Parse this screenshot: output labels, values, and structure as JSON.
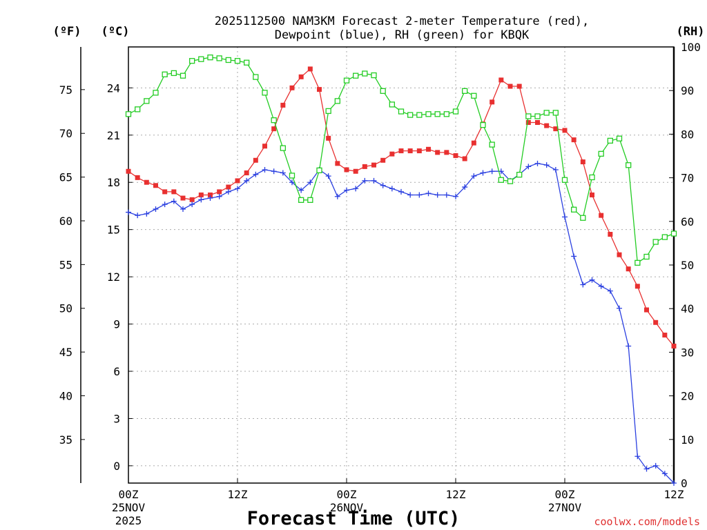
{
  "title_line1": "2025112500 NAM3KM Forecast 2-meter Temperature (red),",
  "title_line2": "Dewpoint (blue), RH (green) for KBQK",
  "credit": "coolwx.com/models",
  "chart_data": {
    "type": "line",
    "title": "2025112500 NAM3KM Forecast 2-meter Temperature (red), Dewpoint (blue), RH (green) for KBQK",
    "xlabel": "Forecast Time (UTC)",
    "x_hours_range": [
      0,
      60
    ],
    "x_ticks": [
      {
        "h": 0,
        "l1": "00Z",
        "l2": "25NOV",
        "l3": "2025"
      },
      {
        "h": 12,
        "l1": "12Z",
        "l2": "",
        "l3": ""
      },
      {
        "h": 24,
        "l1": "00Z",
        "l2": "26NOV",
        "l3": ""
      },
      {
        "h": 36,
        "l1": "12Z",
        "l2": "",
        "l3": ""
      },
      {
        "h": 48,
        "l1": "00Z",
        "l2": "27NOV",
        "l3": ""
      },
      {
        "h": 60,
        "l1": "12Z",
        "l2": "",
        "l3": ""
      }
    ],
    "left_axis_c": {
      "label": "(ºC)",
      "range": [
        -1.1,
        26.6
      ],
      "ticks": [
        "0",
        "3",
        "6",
        "9",
        "12",
        "15",
        "18",
        "21",
        "24"
      ]
    },
    "left_axis_f": {
      "label": "(ºF)",
      "ticks": [
        "35",
        "40",
        "45",
        "50",
        "55",
        "60",
        "65",
        "70",
        "75"
      ]
    },
    "right_axis_rh": {
      "label": "(RH)",
      "range": [
        0,
        100
      ],
      "ticks": [
        "0",
        "10",
        "20",
        "30",
        "40",
        "50",
        "60",
        "70",
        "80",
        "90",
        "100"
      ]
    },
    "series": [
      {
        "name": "2-meter Temperature (°C)",
        "color": "#e83030",
        "marker": "filled-square",
        "axis": "c",
        "values": [
          18.7,
          18.3,
          18.0,
          17.8,
          17.4,
          17.4,
          17.0,
          16.9,
          17.2,
          17.2,
          17.4,
          17.7,
          18.1,
          18.6,
          19.4,
          20.3,
          21.4,
          22.9,
          24.0,
          24.7,
          25.2,
          23.9,
          20.8,
          19.2,
          18.8,
          18.7,
          19.0,
          19.1,
          19.4,
          19.8,
          20.0,
          20.0,
          20.0,
          20.1,
          19.9,
          19.9,
          19.7,
          19.5,
          20.5,
          21.7,
          23.1,
          24.5,
          24.1,
          24.1,
          21.8,
          21.8,
          21.6,
          21.4,
          21.3,
          20.7,
          19.3,
          17.2,
          15.9,
          14.7,
          13.4,
          12.5,
          11.4,
          9.9,
          9.1,
          8.3,
          7.6
        ]
      },
      {
        "name": "Dewpoint (°C)",
        "color": "#2a3fe0",
        "marker": "plus",
        "axis": "c",
        "values": [
          16.1,
          15.9,
          16.0,
          16.3,
          16.6,
          16.8,
          16.3,
          16.6,
          16.9,
          17.0,
          17.1,
          17.4,
          17.6,
          18.1,
          18.5,
          18.8,
          18.7,
          18.6,
          18.0,
          17.5,
          18.0,
          18.8,
          18.4,
          17.1,
          17.5,
          17.6,
          18.1,
          18.1,
          17.8,
          17.6,
          17.4,
          17.2,
          17.2,
          17.3,
          17.2,
          17.2,
          17.1,
          17.7,
          18.4,
          18.6,
          18.7,
          18.7,
          18.1,
          18.5,
          19.0,
          19.2,
          19.1,
          18.8,
          15.8,
          13.3,
          11.5,
          11.8,
          11.4,
          11.1,
          10.0,
          7.6,
          0.6,
          -0.2,
          0.0,
          -0.5,
          -1.1
        ]
      },
      {
        "name": "RH (%)",
        "color": "#22cc22",
        "marker": "open-square",
        "axis": "rh",
        "values": [
          84.6,
          85.7,
          87.6,
          89.5,
          93.7,
          94.0,
          93.4,
          96.8,
          97.2,
          97.6,
          97.4,
          97.0,
          96.8,
          96.4,
          93.1,
          89.5,
          83.2,
          76.8,
          70.5,
          64.9,
          64.9,
          71.7,
          85.3,
          87.6,
          92.3,
          93.4,
          93.9,
          93.5,
          89.9,
          86.8,
          85.2,
          84.4,
          84.4,
          84.6,
          84.6,
          84.6,
          85.2,
          89.9,
          88.8,
          82.1,
          77.6,
          69.5,
          69.2,
          70.7,
          84.1,
          84.1,
          84.9,
          84.9,
          69.5,
          62.7,
          60.8,
          70.1,
          75.5,
          78.5,
          79.0,
          72.9,
          50.5,
          51.9,
          55.3,
          56.4,
          57.2
        ]
      }
    ]
  }
}
